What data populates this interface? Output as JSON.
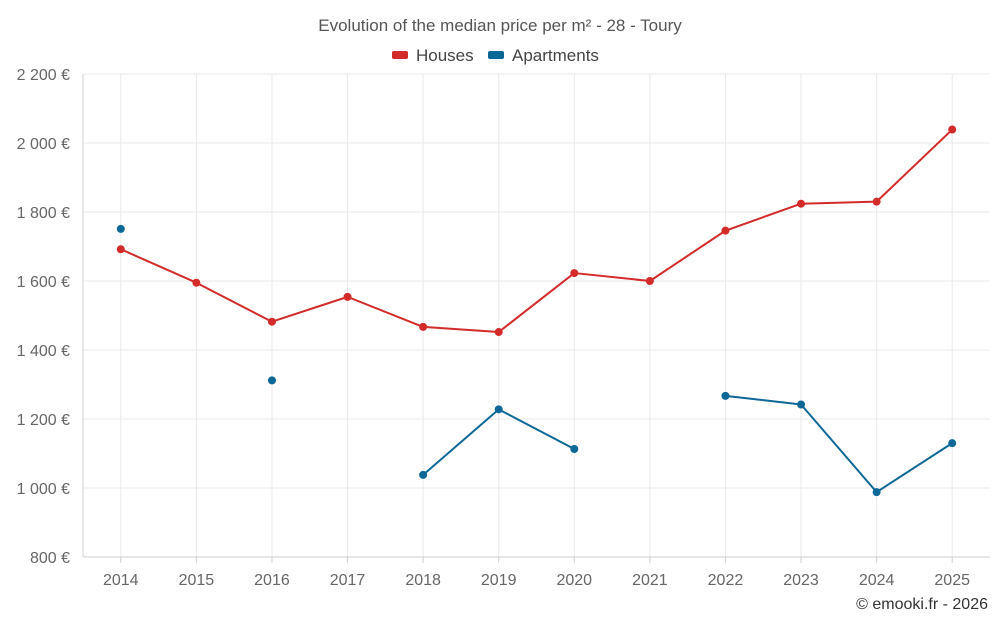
{
  "chart_data": {
    "type": "line",
    "title": "Evolution of the median price per m² - 28 - Toury",
    "categories": [
      "2014",
      "2015",
      "2016",
      "2017",
      "2018",
      "2019",
      "2020",
      "2021",
      "2022",
      "2023",
      "2024",
      "2025"
    ],
    "ylim": [
      800,
      2200
    ],
    "yticks": [
      800,
      1000,
      1200,
      1400,
      1600,
      1800,
      2000,
      2200
    ],
    "ytick_labels": [
      "800 €",
      "1 000 €",
      "1 200 €",
      "1 400 €",
      "1 600 €",
      "1 800 €",
      "2 000 €",
      "2 200 €"
    ],
    "legend_position": "top-center",
    "grid": true,
    "series": [
      {
        "name": "Houses",
        "color": "#d32a2a",
        "values": [
          1692,
          1595,
          1482,
          1554,
          1467,
          1452,
          1623,
          1600,
          1746,
          1824,
          1830,
          2039
        ]
      },
      {
        "name": "Apartments",
        "color": "#0d6797",
        "values": [
          1751,
          null,
          1312,
          null,
          1038,
          1228,
          1113,
          null,
          1267,
          1242,
          988,
          1130
        ]
      }
    ]
  },
  "credit": "© emooki.fr - 2026"
}
